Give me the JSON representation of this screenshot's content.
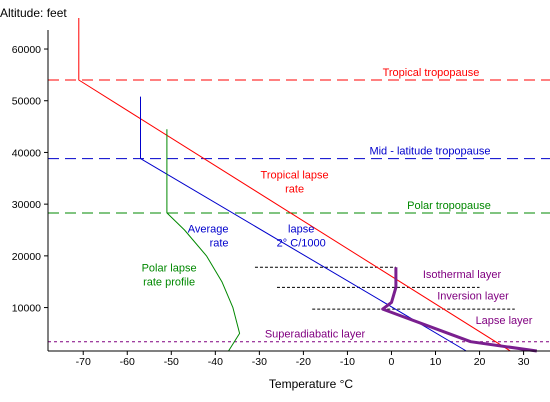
{
  "chart_data": {
    "type": "line",
    "xlabel": "Temperature  °C",
    "ylabel": "Altitude: feet",
    "xlim": [
      -78,
      36
    ],
    "ylim": [
      1600,
      66000
    ],
    "x_ticks": [
      -70,
      -60,
      -50,
      -40,
      -30,
      -20,
      -10,
      0,
      10,
      20,
      30
    ],
    "y_ticks": [
      10000,
      20000,
      30000,
      40000,
      50000,
      60000
    ],
    "colors": {
      "tropical": "#ff0000",
      "midlat": "#0000cc",
      "polar": "#008800",
      "profile": "#7a1f8f",
      "purple_text": "#800080",
      "axis": "#000000"
    },
    "horizontal_lines": [
      {
        "y": 54000,
        "label": "Tropical tropopause",
        "style": "dashed",
        "color": "#ff0000"
      },
      {
        "y": 38800,
        "label": "Mid - latitude tropopause",
        "style": "dashed",
        "color": "#0000cc"
      },
      {
        "y": 28300,
        "label": "Polar tropopause",
        "style": "dashed",
        "color": "#008800"
      },
      {
        "y": 3400,
        "label": "Superadiabatic  layer",
        "style": "dotted",
        "color": "#800080"
      }
    ],
    "layer_lines": [
      {
        "y": 17800,
        "x1": -31,
        "x2": 1,
        "label": "Isothermal layer"
      },
      {
        "y": 13900,
        "x1": -26,
        "x2": 20,
        "label": "Inversion layer"
      },
      {
        "y": 9700,
        "x1": -18,
        "x2": 28,
        "label": "Lapse  layer"
      }
    ],
    "series": [
      {
        "key": "tropical",
        "points": [
          [
            -71,
            66000
          ],
          [
            -71,
            54000
          ],
          [
            27,
            1600
          ]
        ]
      },
      {
        "key": "midlat",
        "points": [
          [
            -57,
            50800
          ],
          [
            -57,
            38800
          ],
          [
            17,
            1600
          ]
        ]
      },
      {
        "key": "polar",
        "points": [
          [
            -51,
            44500
          ],
          [
            -51,
            28300
          ],
          [
            -47,
            25000
          ],
          [
            -42,
            20000
          ],
          [
            -38.5,
            15000
          ],
          [
            -36,
            10000
          ],
          [
            -34.5,
            5000
          ],
          [
            -37,
            1600
          ]
        ]
      },
      {
        "key": "profile",
        "points": [
          [
            1,
            17800
          ],
          [
            1,
            13900
          ],
          [
            0,
            11000
          ],
          [
            -2,
            9700
          ],
          [
            18,
            3400
          ],
          [
            33,
            1600
          ]
        ]
      }
    ],
    "annotations": [
      {
        "lines": [
          "Tropical  lapse",
          "rate"
        ],
        "x": -22,
        "y": 35000,
        "color": "#ff0000",
        "anchor": "middle"
      },
      {
        "lines": [
          "Average",
          "rate"
        ],
        "x": -37,
        "y": 24500,
        "color": "#0000cc",
        "anchor": "end"
      },
      {
        "lines": [
          "lapse",
          "2° C/1000"
        ],
        "x": -20.5,
        "y": 24500,
        "color": "#0000cc",
        "anchor": "middle"
      },
      {
        "lines": [
          "Polar  lapse",
          "rate profile"
        ],
        "x": -50.5,
        "y": 17000,
        "color": "#008800",
        "anchor": "middle"
      }
    ]
  }
}
